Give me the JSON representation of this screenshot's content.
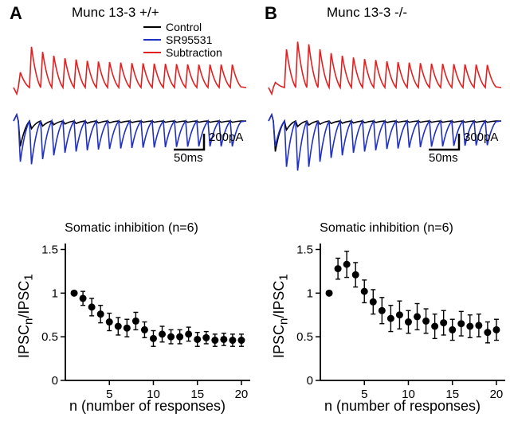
{
  "panels": {
    "A": {
      "label": "A",
      "title": "Munc 13-3 +/+",
      "legend": [
        {
          "label": "Control",
          "color": "#000000"
        },
        {
          "label": "SR95531",
          "color": "#2030c0"
        },
        {
          "label": "Subtraction",
          "color": "#e02020"
        }
      ],
      "scalebar": {
        "y_label": "200pA",
        "x_label": "50ms"
      },
      "scatter_title": "Somatic inhibition (n=6)",
      "y_label": "IPSC",
      "y_sub1": "n",
      "y_mid": "/IPSC",
      "y_sub2": "1",
      "x_label": "n (number of responses)",
      "chart": {
        "type": "scatter",
        "xlim": [
          0,
          21
        ],
        "ylim": [
          0,
          1.55
        ],
        "xticks": [
          5,
          10,
          15,
          20
        ],
        "yticks": [
          0,
          0.5,
          1,
          1.5
        ],
        "marker_color": "#000000",
        "marker_size": 4.5,
        "errorbar_color": "#000000",
        "background_color": "#ffffff",
        "x": [
          1,
          2,
          3,
          4,
          5,
          6,
          7,
          8,
          9,
          10,
          11,
          12,
          13,
          14,
          15,
          16,
          17,
          18,
          19,
          20
        ],
        "y": [
          1.0,
          0.94,
          0.84,
          0.76,
          0.67,
          0.62,
          0.6,
          0.68,
          0.58,
          0.48,
          0.53,
          0.5,
          0.5,
          0.53,
          0.47,
          0.49,
          0.46,
          0.47,
          0.46,
          0.46
        ],
        "err": [
          0.0,
          0.08,
          0.1,
          0.1,
          0.1,
          0.1,
          0.1,
          0.1,
          0.09,
          0.09,
          0.09,
          0.08,
          0.08,
          0.08,
          0.08,
          0.07,
          0.07,
          0.07,
          0.07,
          0.07
        ]
      },
      "traces": {
        "n_pulses": 20,
        "colors": {
          "control": "#000000",
          "sr": "#2030c0",
          "sub": "#e02020"
        },
        "control_amps": [
          1.0,
          0.3,
          0.2,
          0.15,
          0.12,
          0.1,
          0.09,
          0.08,
          0.07,
          0.06,
          0.06,
          0.05,
          0.05,
          0.05,
          0.05,
          0.05,
          0.05,
          0.05,
          0.05,
          0.05
        ],
        "sr_amps": [
          1.6,
          1.7,
          1.5,
          1.35,
          1.25,
          1.2,
          1.15,
          1.12,
          1.1,
          1.08,
          1.06,
          1.05,
          1.04,
          1.03,
          1.02,
          1.01,
          1.0,
          1.0,
          1.0,
          1.0
        ],
        "sub_amps": [
          0.6,
          1.6,
          1.4,
          1.25,
          1.15,
          1.1,
          1.05,
          1.02,
          1.0,
          0.98,
          0.96,
          0.95,
          0.94,
          0.93,
          0.92,
          0.91,
          0.9,
          0.9,
          0.9,
          0.9
        ]
      }
    },
    "B": {
      "label": "B",
      "title": "Munc 13-3 -/-",
      "scalebar": {
        "y_label": "300pA",
        "x_label": "50ms"
      },
      "scatter_title": "Somatic inhibition (n=6)",
      "y_label": "IPSC",
      "y_sub1": "n",
      "y_mid": "/IPSC",
      "y_sub2": "1",
      "x_label": "n (number of responses)",
      "chart": {
        "type": "scatter",
        "xlim": [
          0,
          21
        ],
        "ylim": [
          0,
          1.55
        ],
        "xticks": [
          5,
          10,
          15,
          20
        ],
        "yticks": [
          0,
          0.5,
          1,
          1.5
        ],
        "marker_color": "#000000",
        "marker_size": 4.5,
        "errorbar_color": "#000000",
        "background_color": "#ffffff",
        "x": [
          1,
          2,
          3,
          4,
          5,
          6,
          7,
          8,
          9,
          10,
          11,
          12,
          13,
          14,
          15,
          16,
          17,
          18,
          19,
          20
        ],
        "y": [
          1.0,
          1.28,
          1.33,
          1.21,
          1.02,
          0.9,
          0.8,
          0.71,
          0.75,
          0.67,
          0.73,
          0.68,
          0.62,
          0.66,
          0.58,
          0.65,
          0.62,
          0.63,
          0.55,
          0.58
        ],
        "err": [
          0.0,
          0.12,
          0.15,
          0.14,
          0.13,
          0.14,
          0.15,
          0.15,
          0.16,
          0.13,
          0.15,
          0.14,
          0.14,
          0.14,
          0.12,
          0.14,
          0.13,
          0.13,
          0.12,
          0.12
        ]
      },
      "traces": {
        "n_pulses": 20,
        "colors": {
          "control": "#000000",
          "sr": "#2030c0",
          "sub": "#e02020"
        },
        "control_amps": [
          1.2,
          0.35,
          0.22,
          0.16,
          0.13,
          0.1,
          0.09,
          0.08,
          0.07,
          0.06,
          0.06,
          0.05,
          0.05,
          0.05,
          0.05,
          0.05,
          0.05,
          0.05,
          0.05,
          0.05
        ],
        "sr_amps": [
          1.0,
          1.8,
          1.95,
          1.8,
          1.6,
          1.45,
          1.35,
          1.25,
          1.2,
          1.15,
          1.1,
          1.08,
          1.05,
          1.03,
          1.01,
          1.0,
          0.98,
          0.97,
          0.96,
          0.95
        ],
        "sub_amps": [
          0.2,
          1.5,
          1.8,
          1.7,
          1.5,
          1.35,
          1.25,
          1.18,
          1.12,
          1.08,
          1.03,
          1.0,
          0.98,
          0.96,
          0.94,
          0.93,
          0.92,
          0.91,
          0.9,
          0.89
        ]
      }
    }
  }
}
